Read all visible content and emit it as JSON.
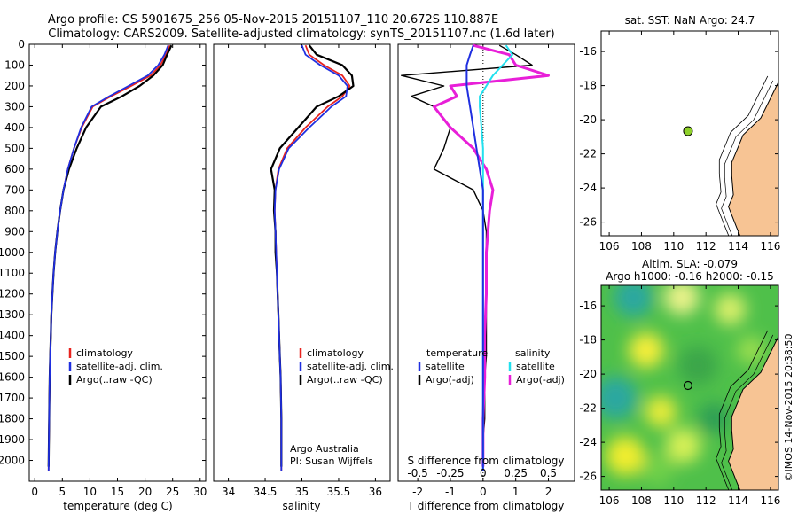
{
  "header": {
    "line1": "Argo profile: CS 5901675_256 05-Nov-2015 20151107_110 20.672S 110.887E",
    "line2": "Climatology: CARS2009. Satellite-adjusted climatology: synTS_20151107.nc (1.6d later)"
  },
  "side_stamp": "©IMOS 14-Nov-2015 20:38:50",
  "colors": {
    "clim": "#e8231f",
    "sat": "#1f2fe0",
    "argo": "#000000",
    "sat_s": "#22e0ee",
    "argo_s": "#e81fd8",
    "land": "#f7c494",
    "float": "#8fd12a"
  },
  "chart_data": [
    {
      "type": "line",
      "xlabel": "temperature (deg C)",
      "xlim": [
        -1,
        31
      ],
      "xticks": [
        "0",
        "5",
        "10",
        "15",
        "20",
        "25",
        "30"
      ],
      "ylim": [
        2100,
        0
      ],
      "yticks": [
        "0",
        "100",
        "200",
        "300",
        "400",
        "500",
        "600",
        "700",
        "800",
        "900",
        "1000",
        "1100",
        "1200",
        "1300",
        "1400",
        "1500",
        "1600",
        "1700",
        "1800",
        "1900",
        "2000"
      ],
      "legend": [
        "climatology",
        "satellite-adj. clim.",
        "Argo(..raw -QC)"
      ],
      "series": [
        {
          "name": "climatology",
          "x": [
            24.5,
            23.8,
            22.8,
            21.0,
            17.5,
            13.8,
            10.5,
            8.5,
            7.1,
            6.0,
            5.2,
            4.6,
            4.1,
            3.7,
            3.4,
            3.2,
            3.0,
            2.9,
            2.8,
            2.7,
            2.6,
            2.5
          ],
          "y": [
            5,
            50,
            100,
            150,
            200,
            250,
            300,
            400,
            500,
            600,
            700,
            800,
            900,
            1000,
            1100,
            1200,
            1300,
            1400,
            1500,
            1600,
            1800,
            2050
          ]
        },
        {
          "name": "satellite-adj. clim.",
          "x": [
            24.2,
            23.5,
            22.4,
            20.5,
            17.0,
            13.5,
            10.3,
            8.4,
            7.1,
            6.0,
            5.2,
            4.6,
            4.1,
            3.7,
            3.4,
            3.2,
            3.0,
            2.9,
            2.8,
            2.7,
            2.6,
            2.5
          ],
          "y": [
            5,
            50,
            100,
            150,
            200,
            250,
            300,
            400,
            500,
            600,
            700,
            800,
            900,
            1000,
            1100,
            1200,
            1300,
            1400,
            1500,
            1600,
            1800,
            2050
          ]
        },
        {
          "name": "Argo(..raw -QC)",
          "x": [
            24.8,
            24.0,
            23.2,
            21.5,
            19.0,
            15.8,
            12.0,
            9.3,
            7.6,
            6.2,
            5.2,
            4.6,
            4.1,
            3.7,
            3.4,
            3.2,
            3.0,
            2.9,
            2.8,
            2.7,
            2.6,
            2.5
          ],
          "y": [
            5,
            50,
            100,
            150,
            200,
            250,
            300,
            400,
            500,
            600,
            700,
            800,
            900,
            1000,
            1100,
            1200,
            1300,
            1400,
            1500,
            1600,
            1800,
            2030
          ]
        }
      ]
    },
    {
      "type": "line",
      "xlabel": "salinity",
      "xlim": [
        33.8,
        36.2
      ],
      "xticks": [
        "34",
        "34.5",
        "35",
        "35.5",
        "36"
      ],
      "ylim": [
        2100,
        0
      ],
      "legend": [
        "climatology",
        "satellite-adj. clim.",
        "Argo(..raw -QC)"
      ],
      "annotation": [
        "Argo Australia",
        "PI: Susan Wijffels"
      ],
      "series": [
        {
          "name": "climatology",
          "x": [
            35.05,
            35.1,
            35.3,
            35.55,
            35.65,
            35.55,
            35.35,
            35.05,
            34.8,
            34.68,
            34.64,
            34.63,
            34.64,
            34.65,
            34.66,
            34.67,
            34.68,
            34.69,
            34.7,
            34.71,
            34.72,
            34.72
          ],
          "y": [
            5,
            50,
            100,
            150,
            200,
            250,
            300,
            400,
            500,
            600,
            700,
            800,
            900,
            1000,
            1100,
            1200,
            1300,
            1400,
            1500,
            1600,
            1800,
            2050
          ]
        },
        {
          "name": "satellite-adj. clim.",
          "x": [
            35.0,
            35.05,
            35.25,
            35.5,
            35.62,
            35.6,
            35.4,
            35.1,
            34.82,
            34.69,
            34.64,
            34.63,
            34.64,
            34.65,
            34.66,
            34.67,
            34.68,
            34.69,
            34.7,
            34.71,
            34.72,
            34.72
          ],
          "y": [
            5,
            50,
            100,
            150,
            200,
            250,
            300,
            400,
            500,
            600,
            700,
            800,
            900,
            1000,
            1100,
            1200,
            1300,
            1400,
            1500,
            1600,
            1800,
            2050
          ]
        },
        {
          "name": "Argo(..raw -QC)",
          "x": [
            35.1,
            35.2,
            35.55,
            35.68,
            35.7,
            35.5,
            35.2,
            34.95,
            34.7,
            34.58,
            34.63,
            34.62,
            34.64,
            34.64,
            34.66,
            34.67,
            34.68,
            34.69,
            34.7,
            34.71,
            34.72,
            34.72
          ],
          "y": [
            5,
            50,
            100,
            150,
            200,
            250,
            300,
            400,
            500,
            600,
            700,
            800,
            900,
            1000,
            1100,
            1200,
            1300,
            1400,
            1500,
            1600,
            1800,
            2030
          ]
        }
      ]
    },
    {
      "type": "line",
      "xlabel": "T difference from climatology",
      "top_label": "S difference from climatology",
      "t_xlim": [
        -2.6,
        2.8
      ],
      "t_xticks": [
        "-2",
        "-1",
        "0",
        "1",
        "2"
      ],
      "s_xticks": [
        "-0.5",
        "-0.25",
        "0",
        "0.25",
        "0.5"
      ],
      "ylim": [
        2100,
        0
      ],
      "legend_titles": [
        "temperature",
        "salinity"
      ],
      "legend": [
        "satellite",
        "Argo(-adj)",
        "satellite",
        "Argo(-adj)"
      ],
      "series": [
        {
          "name": "satellite",
          "x": [
            -0.3,
            -0.4,
            -0.5,
            -0.5,
            -0.5,
            -0.45,
            -0.4,
            -0.3,
            -0.2,
            -0.1,
            0,
            0,
            0,
            0,
            0,
            0,
            0,
            0,
            0,
            0,
            0
          ],
          "y": [
            5,
            50,
            100,
            150,
            200,
            250,
            300,
            400,
            500,
            600,
            700,
            800,
            900,
            1000,
            1200,
            1400,
            1500,
            1600,
            1800,
            1900,
            2050
          ]
        },
        {
          "name": "Argo(-adj)",
          "x": [
            0.5,
            1.0,
            1.5,
            -2.5,
            -1.2,
            -2.2,
            -1.5,
            -1.0,
            -1.2,
            -1.5,
            -0.3,
            0,
            0.1,
            0.1,
            0.1,
            0.1,
            0.1,
            0.05,
            0.05,
            0,
            0
          ],
          "y": [
            5,
            50,
            100,
            150,
            200,
            250,
            300,
            400,
            500,
            600,
            700,
            800,
            900,
            1000,
            1200,
            1400,
            1500,
            1600,
            1800,
            1900,
            2030
          ]
        },
        {
          "name": "satellite",
          "x": [
            0.7,
            0.9,
            0.6,
            0.3,
            0.1,
            -0.1,
            -0.1,
            -0.05,
            0,
            0,
            0,
            0,
            0,
            0,
            0,
            0,
            0,
            0,
            0,
            0,
            0
          ],
          "y": [
            5,
            50,
            100,
            150,
            200,
            250,
            300,
            400,
            500,
            600,
            700,
            800,
            900,
            1000,
            1200,
            1400,
            1500,
            1600,
            1800,
            1900,
            2050
          ]
        },
        {
          "name": "Argo(-adj)",
          "x": [
            -0.3,
            0.8,
            1.0,
            2.0,
            -1.0,
            -0.8,
            -1.5,
            -1.0,
            -0.3,
            0.1,
            0.3,
            0.2,
            0.15,
            0.1,
            0.1,
            0.05,
            0.05,
            0.05,
            0,
            0,
            0
          ],
          "y": [
            5,
            50,
            100,
            150,
            200,
            250,
            300,
            400,
            500,
            600,
            700,
            800,
            900,
            1000,
            1200,
            1400,
            1500,
            1600,
            1800,
            1900,
            2030
          ]
        }
      ]
    },
    {
      "type": "map",
      "title": "sat. SST: NaN Argo: 24.7",
      "xlim": [
        105.5,
        116.5
      ],
      "ylim": [
        -26.8,
        -14.8
      ],
      "xticks": [
        "106",
        "108",
        "110",
        "112",
        "114",
        "116"
      ],
      "yticks": [
        "-16",
        "-18",
        "-20",
        "-22",
        "-24",
        "-26"
      ],
      "float_lon": 110.887,
      "float_lat": -20.672
    },
    {
      "type": "heatmap",
      "title_lines": [
        "Altim. SLA: -0.079",
        "Argo h1000: -0.16 h2000: -0.15"
      ],
      "xlim": [
        105.5,
        116.5
      ],
      "ylim": [
        -26.8,
        -14.8
      ],
      "xticks": [
        "106",
        "108",
        "110",
        "112",
        "114",
        "116"
      ],
      "yticks": [
        "-16",
        "-18",
        "-20",
        "-22",
        "-24",
        "-26"
      ],
      "float_lon": 110.887,
      "float_lat": -20.672
    }
  ]
}
